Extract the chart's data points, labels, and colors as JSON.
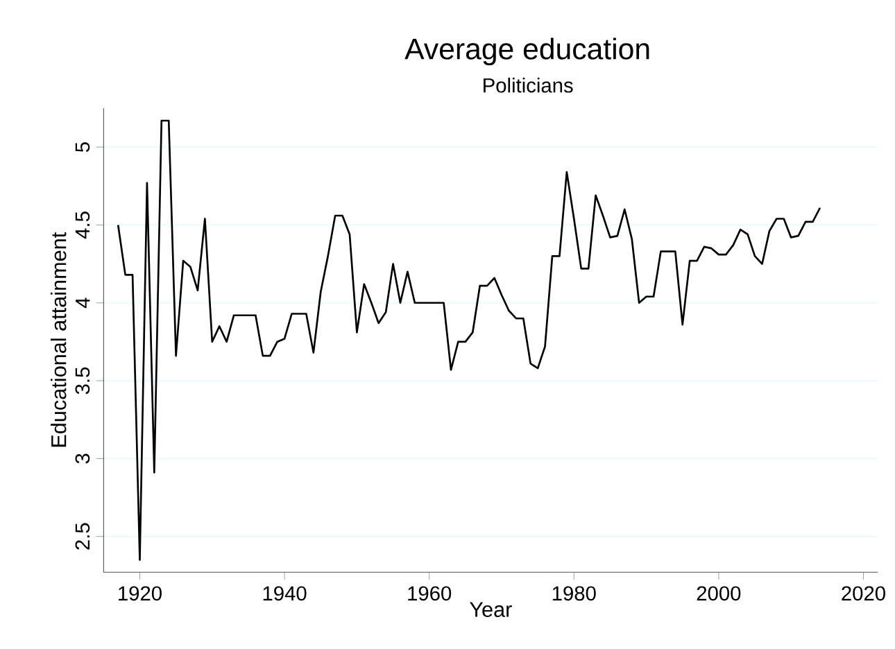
{
  "chart_data": {
    "type": "line",
    "title": "Average education",
    "subtitle": "Politicians",
    "xlabel": "Year",
    "ylabel": "Educational attainment",
    "x": [
      1917,
      1918,
      1919,
      1920,
      1921,
      1922,
      1923,
      1924,
      1925,
      1926,
      1927,
      1928,
      1929,
      1930,
      1931,
      1932,
      1933,
      1934,
      1935,
      1936,
      1937,
      1938,
      1939,
      1940,
      1941,
      1942,
      1943,
      1944,
      1945,
      1946,
      1947,
      1948,
      1949,
      1950,
      1951,
      1952,
      1953,
      1954,
      1955,
      1956,
      1957,
      1958,
      1959,
      1960,
      1961,
      1962,
      1963,
      1964,
      1965,
      1966,
      1967,
      1968,
      1969,
      1970,
      1971,
      1972,
      1973,
      1974,
      1975,
      1976,
      1977,
      1978,
      1979,
      1980,
      1981,
      1982,
      1983,
      1984,
      1985,
      1986,
      1987,
      1988,
      1989,
      1990,
      1991,
      1992,
      1993,
      1994,
      1995,
      1996,
      1997,
      1998,
      1999,
      2000,
      2001,
      2002,
      2003,
      2004,
      2005,
      2006,
      2007,
      2008,
      2009,
      2010,
      2011,
      2012,
      2013,
      2014
    ],
    "series": [
      {
        "color": "#000000",
        "values": [
          4.5,
          4.18,
          4.18,
          2.35,
          4.77,
          2.91,
          5.17,
          5.17,
          3.66,
          4.27,
          4.23,
          4.08,
          4.54,
          3.75,
          3.85,
          3.75,
          3.92,
          3.92,
          3.92,
          3.92,
          3.66,
          3.66,
          3.75,
          3.77,
          3.93,
          3.93,
          3.93,
          3.68,
          4.07,
          4.3,
          4.56,
          4.56,
          4.44,
          3.81,
          4.12,
          4.0,
          3.87,
          3.94,
          4.25,
          4.0,
          4.2,
          4.0,
          4.0,
          4.0,
          4.0,
          4.0,
          3.57,
          3.75,
          3.75,
          3.81,
          4.11,
          4.11,
          4.16,
          4.05,
          3.95,
          3.9,
          3.9,
          3.61,
          3.58,
          3.72,
          4.3,
          4.3,
          4.84,
          4.54,
          4.22,
          4.22,
          4.69,
          4.56,
          4.42,
          4.43,
          4.6,
          4.41,
          4.0,
          4.04,
          4.04,
          4.33,
          4.33,
          4.33,
          3.86,
          4.27,
          4.27,
          4.36,
          4.35,
          4.31,
          4.31,
          4.37,
          4.47,
          4.44,
          4.3,
          4.25,
          4.46,
          4.54,
          4.54,
          4.42,
          4.43,
          4.52,
          4.52,
          4.61
        ]
      }
    ],
    "xlim": [
      1915,
      2022
    ],
    "ylim": [
      2.27,
      5.25
    ],
    "xticks": [
      1920,
      1940,
      1960,
      1980,
      2000,
      2020
    ],
    "yticks": [
      2.5,
      3,
      3.5,
      4,
      4.5,
      5
    ],
    "grid": "y",
    "marker": "none",
    "line_style": "solid"
  }
}
